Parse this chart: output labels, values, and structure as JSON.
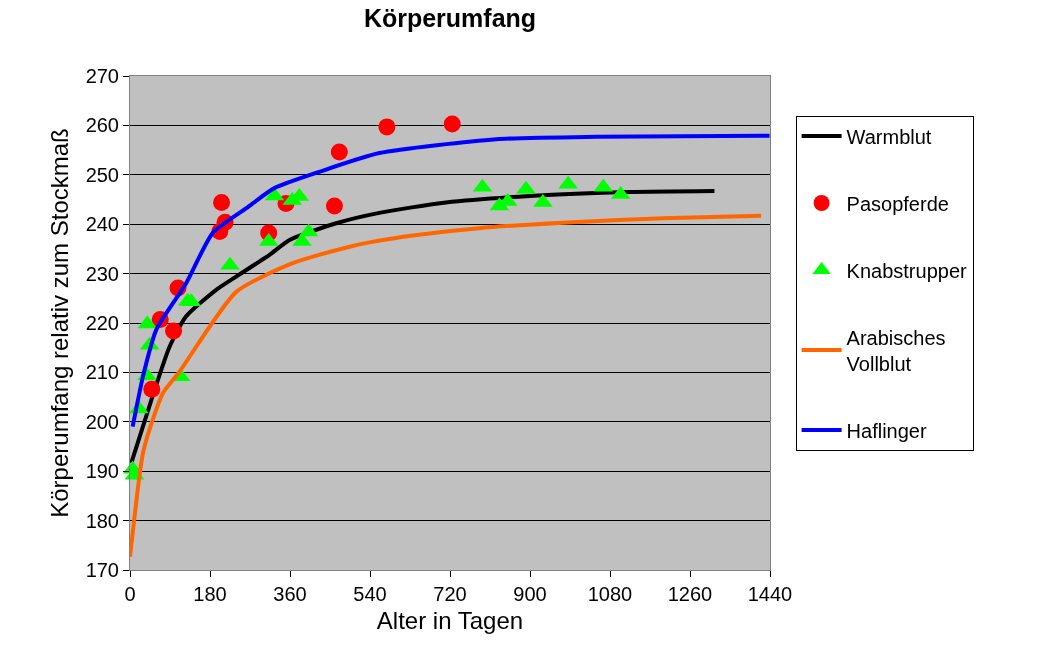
{
  "chart_data": {
    "type": "line",
    "title": "Körperumfang",
    "xlabel": "Alter in Tagen",
    "ylabel": "Körperumfang relativ zum Stockmaß",
    "xlim": [
      0,
      1440
    ],
    "xticks": [
      0,
      180,
      360,
      540,
      720,
      900,
      1080,
      1260,
      1440
    ],
    "ylim": [
      170,
      270
    ],
    "yticks": [
      170,
      180,
      190,
      200,
      210,
      220,
      230,
      240,
      250,
      260,
      270
    ],
    "grid": "y",
    "legend": "right",
    "series": [
      {
        "name": "Warmblut",
        "type": "line",
        "marker": "none",
        "color": "#000000",
        "x": [
          3,
          48,
          89,
          126,
          194,
          239,
          314,
          359,
          464,
          561,
          711,
          899,
          1124,
          1315
        ],
        "values": [
          191.7,
          204.4,
          215.2,
          221.3,
          226.7,
          229.4,
          233.8,
          236.8,
          240.2,
          242.3,
          244.4,
          245.7,
          246.5,
          246.7
        ]
      },
      {
        "name": "Pasopferde",
        "type": "scatter",
        "marker": "circle",
        "color": "#ff0000",
        "x": [
          49,
          68,
          98,
          108,
          202,
          214,
          206,
          312,
          351,
          460,
          471,
          578,
          725
        ],
        "values": [
          206.6,
          220.7,
          218.4,
          227.1,
          238.5,
          240.4,
          244.4,
          238.2,
          244.2,
          243.7,
          254.6,
          259.7,
          260.3
        ]
      },
      {
        "name": "Knabstrupper",
        "type": "scatter",
        "marker": "triangle",
        "color": "#00ff00",
        "x": [
          6,
          10,
          20,
          38,
          44,
          39,
          114,
          130,
          138,
          225,
          312,
          325,
          365,
          381,
          387,
          402,
          793,
          831,
          850,
          891,
          929,
          986,
          1065,
          1104
        ],
        "values": [
          190.4,
          189.2,
          202.6,
          209.3,
          215.5,
          219.8,
          209.1,
          224.4,
          224.3,
          231.7,
          236.5,
          245.7,
          244.8,
          245.6,
          236.5,
          238.4,
          247.5,
          243.7,
          244.6,
          247.1,
          244.4,
          248.1,
          247.5,
          246.0
        ]
      },
      {
        "name": "Arabisches Vollblut",
        "type": "line",
        "marker": "none",
        "color": "#ff6600",
        "x": [
          0,
          29,
          51,
          74,
          111,
          239,
          366,
          501,
          636,
          786,
          974,
          1199,
          1420
        ],
        "values": [
          172.7,
          193.6,
          200.4,
          205.8,
          210.1,
          226.3,
          232.1,
          235.6,
          237.7,
          239.2,
          240.3,
          241.2,
          241.7
        ]
      },
      {
        "name": "Haflinger",
        "type": "line",
        "marker": "none",
        "color": "#0000ff",
        "x": [
          6,
          29,
          59,
          126,
          186,
          261,
          325,
          426,
          561,
          824,
          1049,
          1439
        ],
        "values": [
          199.0,
          209.1,
          218.6,
          228.0,
          238.2,
          243.2,
          247.3,
          250.6,
          254.4,
          257.2,
          257.7,
          257.9
        ]
      }
    ]
  }
}
